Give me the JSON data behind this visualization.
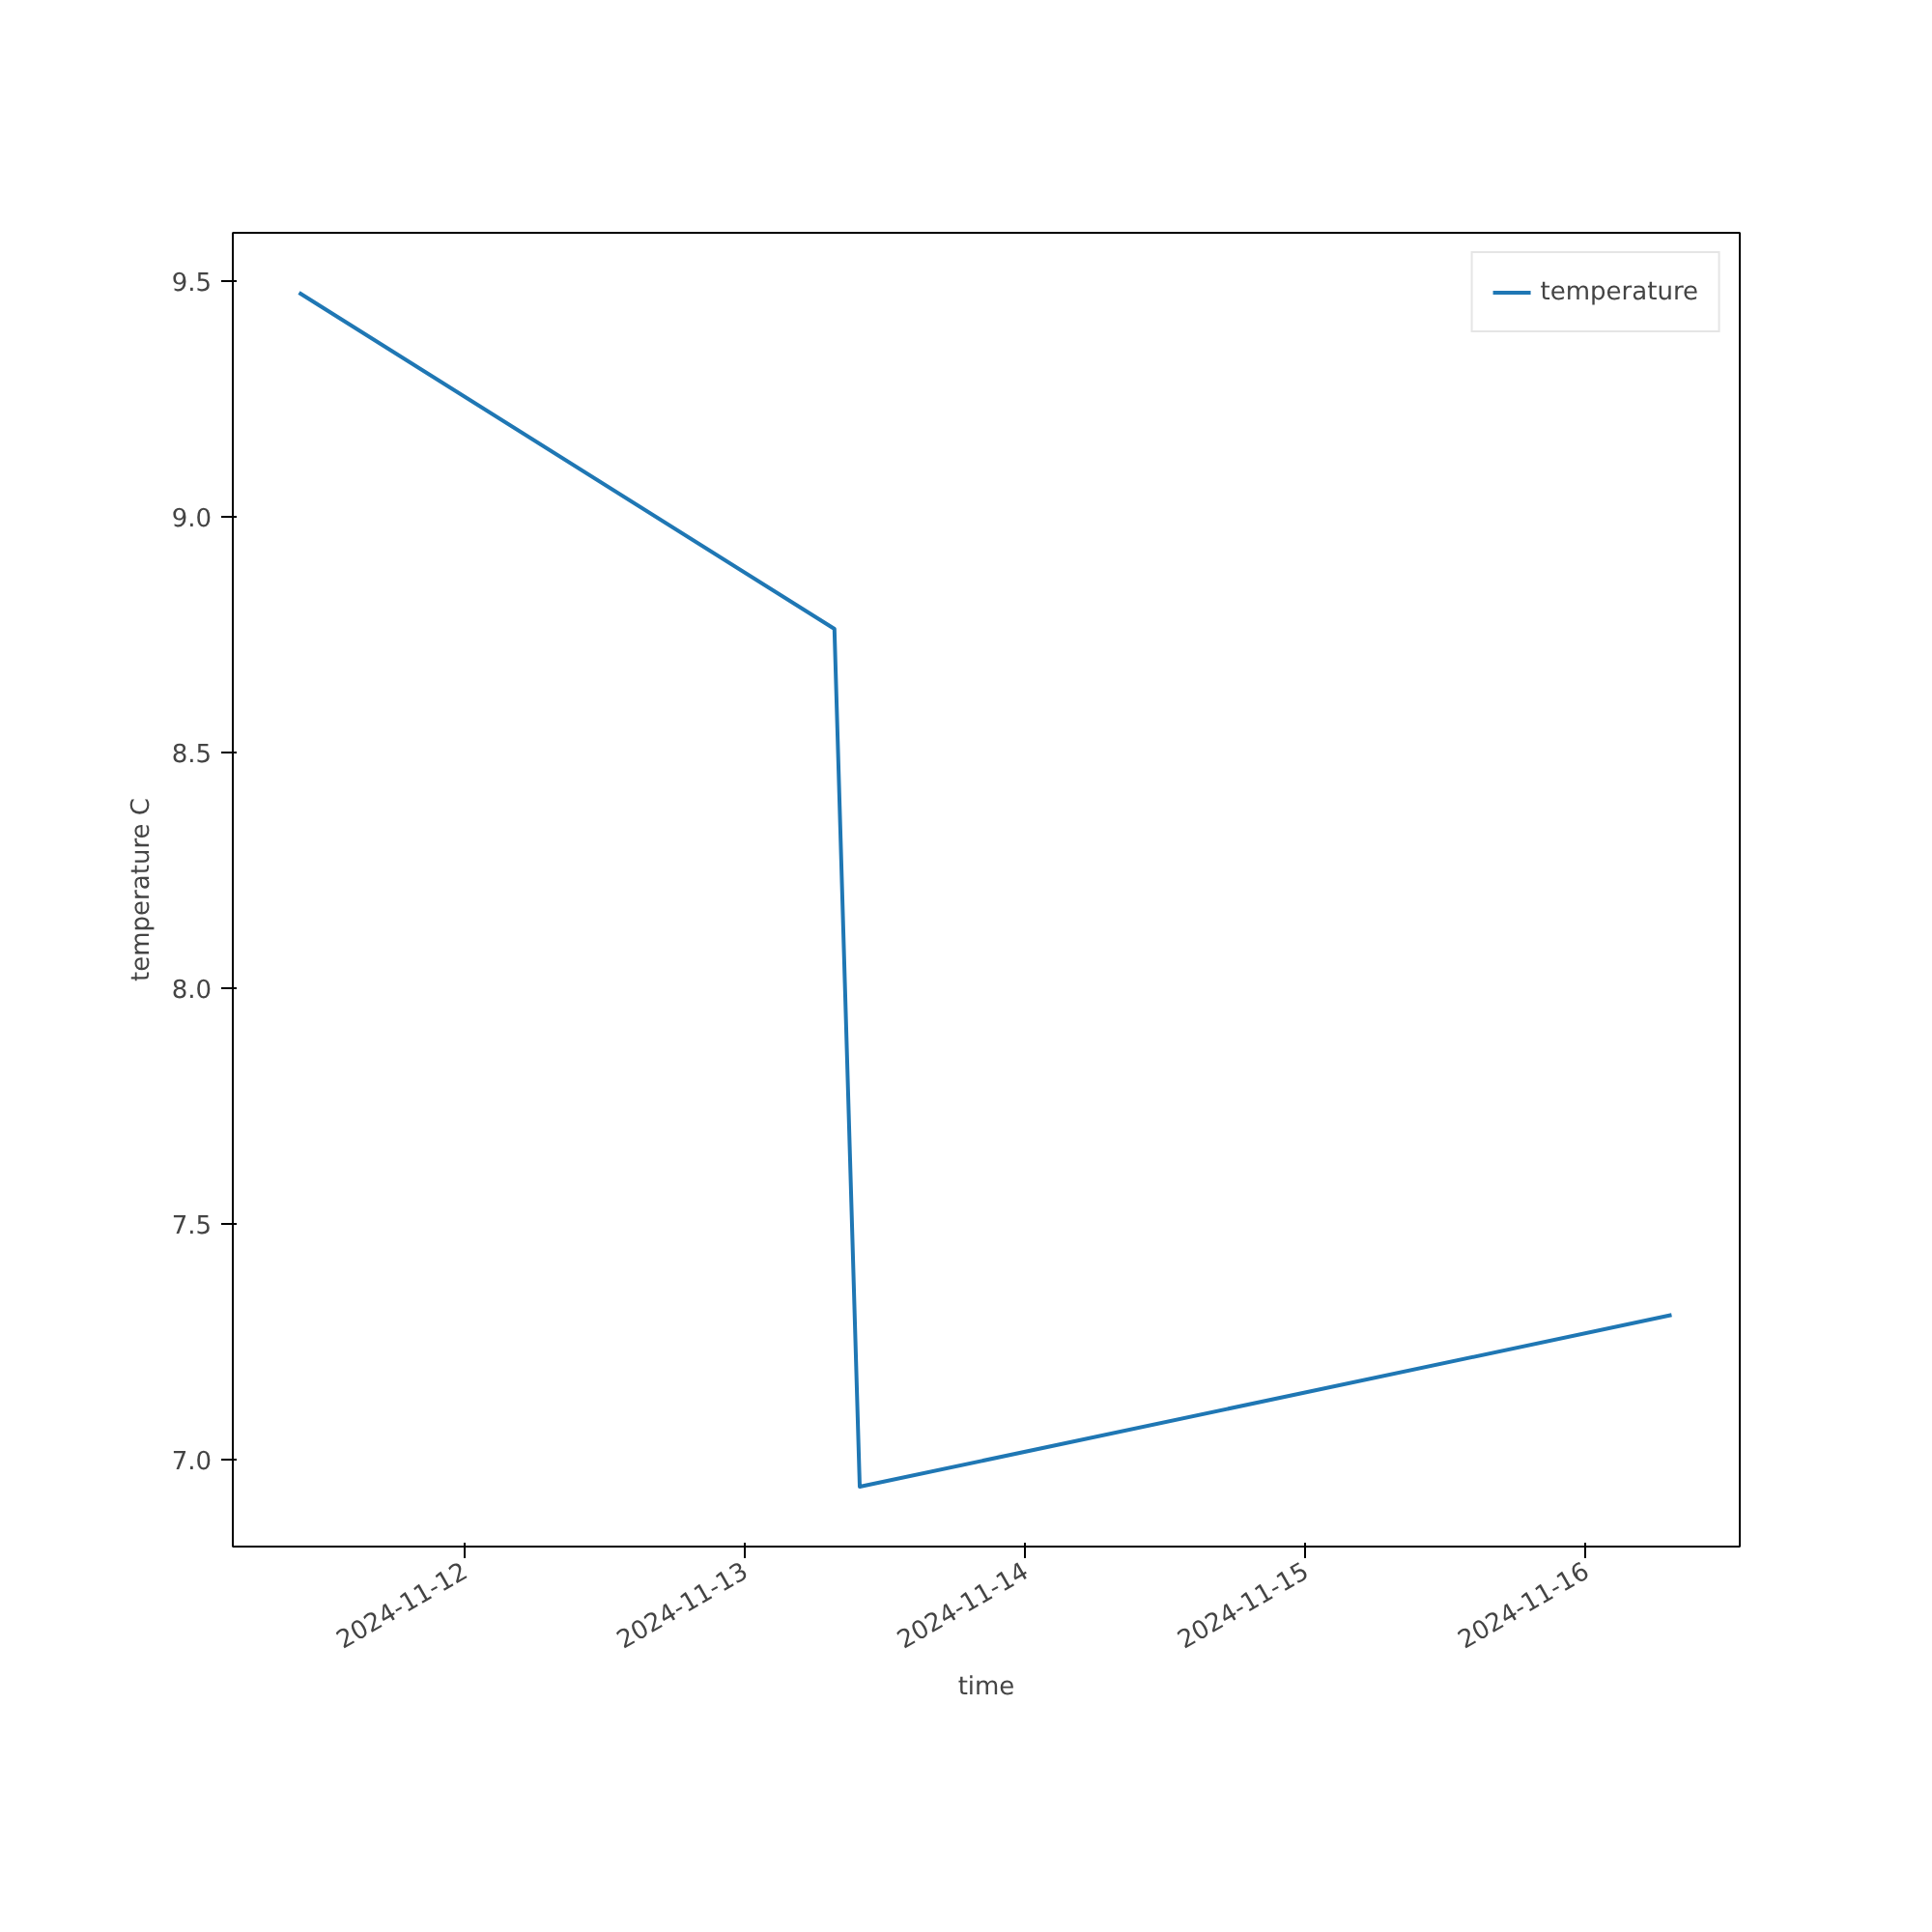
{
  "chart_data": {
    "type": "line",
    "xlabel": "time",
    "ylabel": "temperature C",
    "x": [
      "2024-11-11T09:50",
      "2024-11-13T07:40",
      "2024-11-13T09:50",
      "2024-11-16T07:20"
    ],
    "series": [
      {
        "name": "temperature",
        "color": "#1f77b4",
        "values": [
          9.475,
          8.762,
          6.943,
          7.307
        ]
      }
    ],
    "xlim": [
      "2024-11-11T04:10",
      "2024-11-16T13:10"
    ],
    "xticks": [
      "2024-11-12",
      "2024-11-13",
      "2024-11-14",
      "2024-11-15",
      "2024-11-16"
    ],
    "ylim": [
      6.816,
      9.602
    ],
    "yticks": [
      {
        "value": 7,
        "label": "7.0"
      },
      7.5,
      {
        "value": 8,
        "label": "8.0"
      },
      8.5,
      {
        "value": 9,
        "label": "9.0"
      },
      9.5
    ],
    "grid": false,
    "legend": "top right",
    "marker": "none",
    "line_style": "solid"
  }
}
